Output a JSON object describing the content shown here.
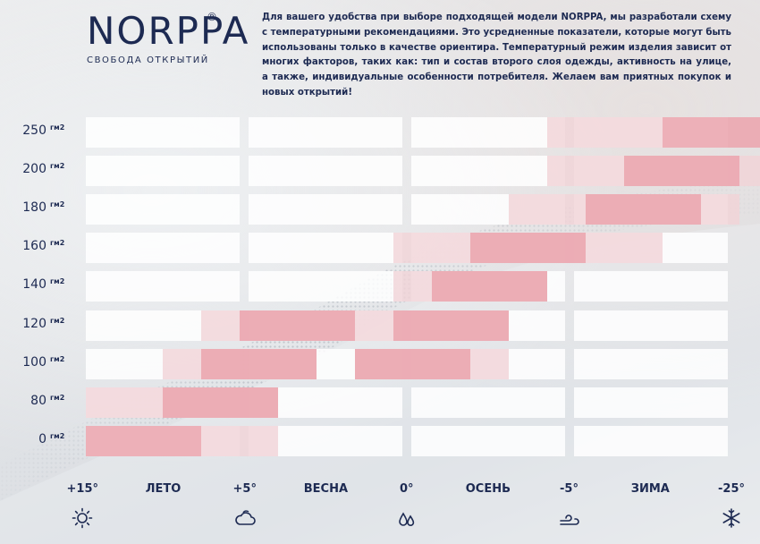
{
  "brand": {
    "logo": "NORPPA",
    "reg_mark": "®",
    "tagline": "СВОБОДА ОТКРЫТИЙ"
  },
  "intro_text": "Для вашего удобства при выборе подходящей модели NORPPA, мы разработали схему с температурными рекомендациями. Это усредненные показатели, которые могут быть использованы только в качестве ориентира. Температурный режим изделия зависит от многих факторов, таких как: тип и состав второго слоя одежды, активность на улице, а также, индивидуальные особенности потребителя. Желаем вам приятных покупок и новых открытий!",
  "unit": "гм2",
  "rows": [
    {
      "label": "250",
      "solid": [
        14.5,
        17.5
      ],
      "faded": [
        11.5,
        14.5
      ]
    },
    {
      "label": "200",
      "solid": [
        13.5,
        16.5
      ],
      "faded": [
        11.5,
        17.5
      ]
    },
    {
      "label": "180",
      "solid": [
        12.5,
        15.5
      ],
      "faded": [
        10.5,
        16.5
      ]
    },
    {
      "label": "160",
      "solid": [
        9.5,
        12.5
      ],
      "faded": [
        7.5,
        14.5
      ]
    },
    {
      "label": "140",
      "solid": [
        8.5,
        11.5
      ],
      "faded": [
        7.5,
        11.5
      ]
    },
    {
      "label": "120",
      "solid": [
        3.5,
        6.5
      ],
      "faded": [
        2.5,
        6.5
      ],
      "solid2": [
        7.5,
        10.5
      ],
      "faded2": [
        6.5,
        10.5
      ]
    },
    {
      "label": "100",
      "solid": [
        2.5,
        5.5
      ],
      "faded": [
        1.5,
        5.5
      ],
      "solid2": [
        6.5,
        9.5
      ],
      "faded2": [
        6.5,
        10.5
      ]
    },
    {
      "label": "80",
      "solid": [
        1.5,
        4.5
      ],
      "faded": [
        -0.5,
        4.5
      ]
    },
    {
      "label": "0",
      "solid": [
        -0.5,
        2.5
      ],
      "faded": [
        2.5,
        4.5
      ]
    }
  ],
  "x_labels": [
    {
      "text": "+15°",
      "pos": 0
    },
    {
      "text": "ЛЕТО",
      "pos": 1
    },
    {
      "text": "+5°",
      "pos": 2
    },
    {
      "text": "ВЕСНА",
      "pos": 3
    },
    {
      "text": "0°",
      "pos": 4
    },
    {
      "text": "ОСЕНЬ",
      "pos": 5
    },
    {
      "text": "-5°",
      "pos": 6
    },
    {
      "text": "ЗИМА",
      "pos": 7
    },
    {
      "text": "-25°",
      "pos": 8
    }
  ],
  "icons": [
    {
      "name": "sun-icon",
      "pos": 0
    },
    {
      "name": "cloud-icon",
      "pos": 2
    },
    {
      "name": "raindrops-icon",
      "pos": 4
    },
    {
      "name": "wind-icon",
      "pos": 6
    },
    {
      "name": "snowflake-icon",
      "pos": 8
    }
  ],
  "colors": {
    "navy": "#1d2a52",
    "bar_solid": "#eba7b0",
    "bar_faded": "#f1d3d7",
    "cell": "#ffffff"
  }
}
